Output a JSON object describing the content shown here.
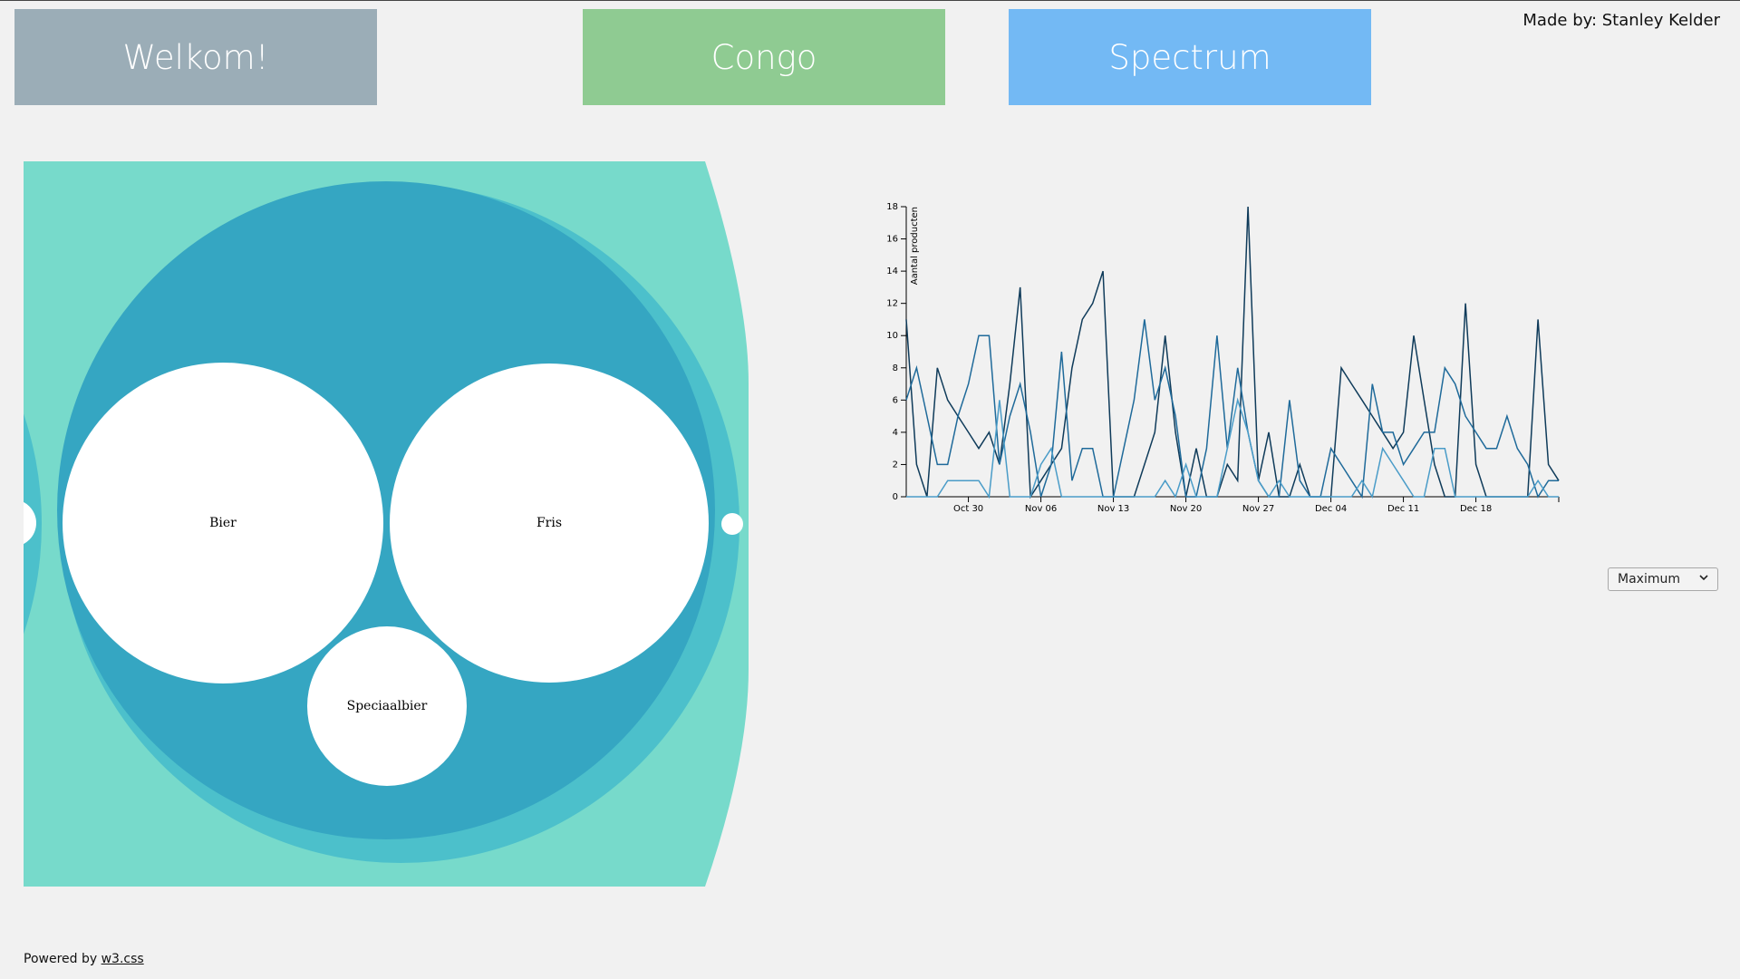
{
  "nav": {
    "welkom_label": "Welkom!",
    "congo_label": "Congo",
    "spectrum_label": "Spectrum"
  },
  "credit": "Made by: Stanley Kelder",
  "bubbles": {
    "colors": {
      "outer": "#77dacb",
      "ring": "#4cc0cb",
      "inner": "#35a6c2",
      "leaf": "#ffffff"
    },
    "labels": [
      "Bier",
      "Fris",
      "Speciaalbier"
    ]
  },
  "line_chart": {
    "ylabel": "Aantal producten",
    "y_ticks": [
      "0",
      "2",
      "4",
      "6",
      "8",
      "10",
      "12",
      "14",
      "16",
      "18"
    ],
    "x_ticks": [
      "Oct 30",
      "Nov 06",
      "Nov 13",
      "Nov 20",
      "Nov 27",
      "Dec 04",
      "Dec 11",
      "Dec 18"
    ]
  },
  "chart_data": {
    "type": "line",
    "x_start": "Oct 24",
    "x_end": "Dec 24",
    "xlabel": "",
    "ylabel": "Aantal producten",
    "ylim": [
      0,
      18
    ],
    "series": [
      {
        "color": "#0f3b5a",
        "values": [
          11,
          2,
          0,
          8,
          6,
          5,
          4,
          3,
          4,
          2,
          7,
          13,
          0,
          1,
          2,
          3,
          8,
          11,
          12,
          14,
          0,
          0,
          0,
          2,
          4,
          10,
          4,
          0,
          3,
          0,
          0,
          2,
          1,
          18,
          1,
          4,
          0,
          0,
          2,
          0,
          0,
          0,
          8,
          7,
          6,
          5,
          4,
          3,
          4,
          10,
          6,
          2,
          0,
          0,
          12,
          2,
          0,
          0,
          0,
          0,
          0,
          11,
          2,
          1
        ]
      },
      {
        "color": "#1f6a9a",
        "values": [
          6,
          8,
          5,
          2,
          2,
          5,
          7,
          10,
          10,
          2,
          5,
          7,
          4,
          0,
          2,
          9,
          1,
          3,
          3,
          0,
          0,
          3,
          6,
          11,
          6,
          8,
          5,
          0,
          0,
          3,
          10,
          3,
          8,
          4,
          1,
          0,
          0,
          6,
          1,
          0,
          0,
          3,
          2,
          1,
          0,
          7,
          4,
          4,
          2,
          3,
          4,
          4,
          8,
          7,
          5,
          4,
          3,
          3,
          5,
          3,
          2,
          0,
          1,
          1
        ]
      },
      {
        "color": "#4a9cc8",
        "values": [
          0,
          0,
          0,
          0,
          1,
          1,
          1,
          1,
          0,
          6,
          0,
          0,
          0,
          2,
          3,
          0,
          0,
          0,
          0,
          0,
          0,
          0,
          0,
          0,
          0,
          1,
          0,
          2,
          0,
          0,
          0,
          3,
          6,
          4,
          1,
          0,
          1,
          0,
          0,
          0,
          0,
          0,
          0,
          0,
          1,
          0,
          3,
          2,
          1,
          0,
          0,
          3,
          3,
          0,
          0,
          0,
          0,
          0,
          0,
          0,
          0,
          1,
          0,
          0
        ]
      }
    ]
  },
  "select": {
    "value": "Maximum"
  },
  "footer": {
    "text": "Powered by ",
    "link": "w3.css"
  }
}
